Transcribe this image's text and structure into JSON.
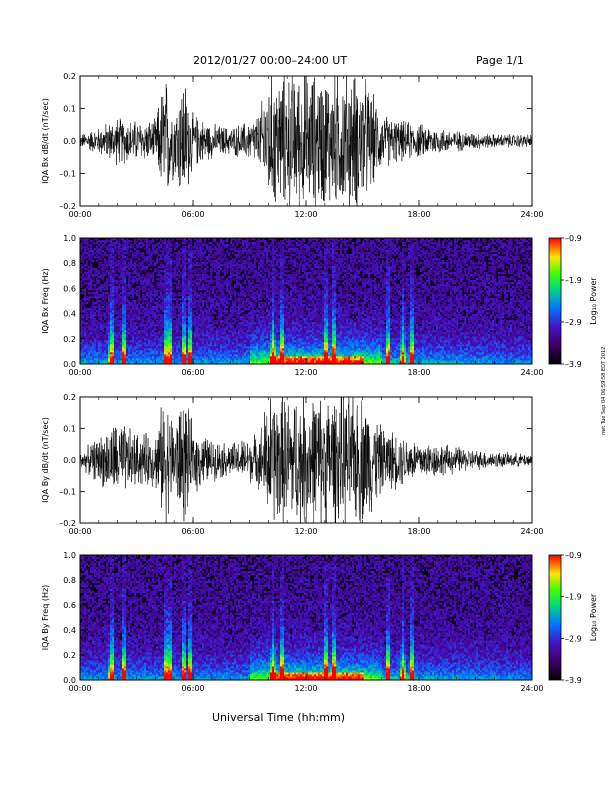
{
  "header": {
    "title": "2012/01/27   00:00–24:00 UT",
    "page": "Page 1/1"
  },
  "x_axis_title": "Universal Time (hh:mm)",
  "timestamp_stamp": "nwt Tue Sep 04 06:59:58 EDT 2012",
  "colorbar": {
    "label": "Log₁₀ Power",
    "ticks": [
      "–0.9",
      "–1.9",
      "–2.9",
      "–3.9"
    ]
  },
  "chart_data": [
    {
      "type": "line",
      "title": "",
      "ylabel": "IQA Bx dB/dt (nT/sec)",
      "xlim": [
        0,
        24
      ],
      "ylim": [
        -0.2,
        0.2
      ],
      "x_tick_labels": [
        "00:00",
        "06:00",
        "12:00",
        "18:00",
        "24:00"
      ],
      "y_tick_labels": [
        "0.2",
        "0.1",
        "0.0",
        "–0.1",
        "–0.2"
      ],
      "envelope": {
        "x_hours": [
          0,
          1,
          2,
          3,
          4,
          4.5,
          5,
          5.5,
          6,
          7,
          8,
          9,
          9.5,
          10,
          11,
          12,
          13,
          14,
          15,
          15.5,
          16,
          17,
          18,
          19,
          20,
          21,
          22,
          23,
          24
        ],
        "amplitude": [
          0.02,
          0.04,
          0.07,
          0.06,
          0.06,
          0.2,
          0.1,
          0.2,
          0.08,
          0.05,
          0.04,
          0.06,
          0.08,
          0.2,
          0.2,
          0.2,
          0.2,
          0.2,
          0.2,
          0.14,
          0.08,
          0.06,
          0.05,
          0.04,
          0.03,
          0.025,
          0.02,
          0.02,
          0.02
        ]
      }
    },
    {
      "type": "heatmap",
      "title": "",
      "ylabel": "IQA Bx Freq (Hz)",
      "xlim": [
        0,
        24
      ],
      "ylim": [
        0,
        1.0
      ],
      "x_tick_labels": [
        "00:00",
        "06:00",
        "12:00",
        "18:00",
        "24:00"
      ],
      "y_tick_labels": [
        "1.0",
        "0.8",
        "0.6",
        "0.4",
        "0.2",
        "0.0"
      ],
      "value_label": "Log₁₀ Power",
      "value_range": [
        -3.9,
        -0.9
      ]
    },
    {
      "type": "line",
      "title": "",
      "ylabel": "IQA By dB/dt (nT/sec)",
      "xlim": [
        0,
        24
      ],
      "ylim": [
        -0.2,
        0.2
      ],
      "x_tick_labels": [
        "00:00",
        "06:00",
        "12:00",
        "18:00",
        "24:00"
      ],
      "y_tick_labels": [
        "0.2",
        "0.1",
        "0.0",
        "–0.1",
        "–0.2"
      ],
      "envelope": {
        "x_hours": [
          0,
          1,
          2,
          3,
          4,
          4.5,
          5,
          5.5,
          6,
          7,
          8,
          9,
          9.5,
          10,
          11,
          12,
          13,
          14,
          15,
          15.5,
          16,
          17,
          18,
          19,
          20,
          21,
          22,
          23,
          24
        ],
        "amplitude": [
          0.02,
          0.07,
          0.12,
          0.08,
          0.08,
          0.2,
          0.12,
          0.2,
          0.1,
          0.06,
          0.05,
          0.07,
          0.08,
          0.2,
          0.2,
          0.2,
          0.2,
          0.2,
          0.2,
          0.16,
          0.1,
          0.08,
          0.06,
          0.05,
          0.04,
          0.03,
          0.025,
          0.02,
          0.02
        ]
      }
    },
    {
      "type": "heatmap",
      "title": "",
      "ylabel": "IQA By Freq (Hz)",
      "xlim": [
        0,
        24
      ],
      "ylim": [
        0,
        1.0
      ],
      "x_tick_labels": [
        "00:00",
        "06:00",
        "12:00",
        "18:00",
        "24:00"
      ],
      "y_tick_labels": [
        "1.0",
        "0.8",
        "0.6",
        "0.4",
        "0.2",
        "0.0"
      ],
      "value_label": "Log₁₀ Power",
      "value_range": [
        -3.9,
        -0.9
      ]
    }
  ]
}
